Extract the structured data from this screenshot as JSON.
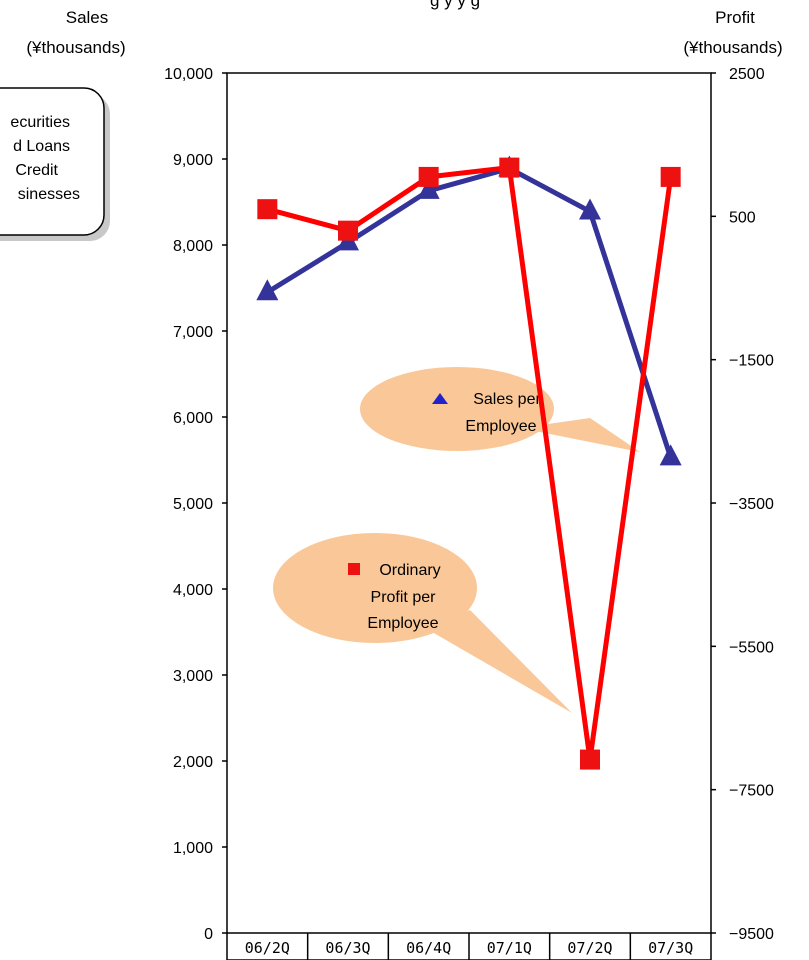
{
  "header": {
    "title_fragment": "g      y        y g"
  },
  "note_box": {
    "lines": [
      "ecurities",
      "d Loans",
      "Credit",
      "sinesses"
    ]
  },
  "callouts": {
    "sales": {
      "lines": [
        "Sales per",
        "Employee"
      ]
    },
    "profit": {
      "lines": [
        "Ordinary",
        "Profit per",
        "Employee"
      ]
    }
  },
  "colors": {
    "sales_series": "#333399",
    "profit_series": "#ff0000",
    "callout_fill": "#fac898",
    "axis": "#000000"
  },
  "chart_data": {
    "type": "line",
    "categories": [
      "06/2Q",
      "06/3Q",
      "06/4Q",
      "07/1Q",
      "07/2Q",
      "07/3Q"
    ],
    "y_left": {
      "label_lines": [
        "Sales",
        "(¥thousands)"
      ],
      "range": [
        0,
        10000
      ],
      "ticks": [
        "0",
        "1,000",
        "2,000",
        "3,000",
        "4,000",
        "5,000",
        "6,000",
        "7,000",
        "8,000",
        "9,000",
        "10,000"
      ]
    },
    "y_right": {
      "label_lines": [
        "Profit",
        "(¥thousands)"
      ],
      "range": [
        -9500,
        2500
      ],
      "ticks": [
        "−9500",
        "−7500",
        "−5500",
        "−3500",
        "−1500",
        "500",
        "2500"
      ]
    },
    "series": [
      {
        "name": "Sales per Employee",
        "axis": "left",
        "marker": "triangle",
        "values": [
          7450,
          8030,
          8630,
          8890,
          8390,
          5530
        ]
      },
      {
        "name": "Ordinary Profit per Employee",
        "axis": "right",
        "marker": "square",
        "values": [
          600,
          300,
          1050,
          1180,
          -7080,
          1050
        ]
      }
    ],
    "grid": false,
    "legend": "callouts"
  }
}
